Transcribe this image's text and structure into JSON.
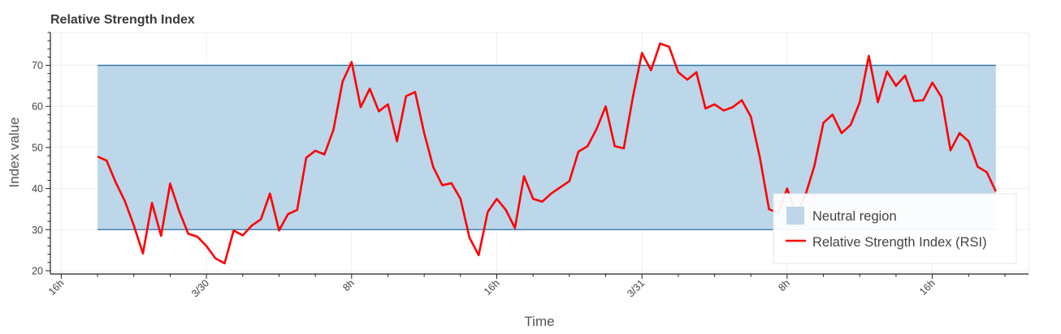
{
  "chart_data": {
    "type": "line",
    "title": "Relative Strength Index",
    "xlabel": "Time",
    "ylabel": "Index value",
    "x_unit": "hours",
    "x_ticks": [
      {
        "hour": 16,
        "label": "16h"
      },
      {
        "hour": 24,
        "label": "3/30"
      },
      {
        "hour": 32,
        "label": "8h"
      },
      {
        "hour": 40,
        "label": "16h"
      },
      {
        "hour": 48,
        "label": "3/31"
      },
      {
        "hour": 56,
        "label": "8h"
      },
      {
        "hour": 64,
        "label": "16h"
      }
    ],
    "xlim": [
      15.4,
      69.3
    ],
    "ylim": [
      19.2,
      78
    ],
    "y_ticks": [
      20,
      30,
      40,
      50,
      60,
      70
    ],
    "grid": true,
    "legend_position": "bottom-right",
    "band": {
      "name": "Neutral region",
      "lower": 30,
      "upper": 70,
      "x_start": 18,
      "x_end": 67.5,
      "fill": "#bcd6ea",
      "edge": "#2c6fa3"
    },
    "series": [
      {
        "name": "Relative Strength Index (RSI)",
        "color": "#ff0000",
        "x_start": 18,
        "x_step": 0.5,
        "values": [
          47.8,
          46.8,
          41.5,
          37.0,
          31.0,
          24.2,
          36.5,
          28.5,
          41.2,
          34.5,
          29.0,
          28.3,
          26.0,
          23.0,
          21.8,
          29.8,
          28.6,
          31.0,
          32.5,
          38.8,
          29.8,
          33.8,
          34.8,
          47.5,
          49.2,
          48.3,
          54.3,
          66.0,
          70.8,
          59.8,
          64.3,
          58.8,
          60.5,
          51.5,
          62.5,
          63.5,
          53.5,
          45.2,
          40.8,
          41.3,
          37.5,
          28.0,
          23.8,
          34.3,
          37.5,
          34.8,
          30.4,
          43.0,
          37.5,
          36.8,
          38.8,
          40.3,
          41.8,
          49.0,
          50.3,
          54.5,
          60.0,
          50.3,
          49.8,
          62.3,
          73.0,
          68.8,
          75.3,
          74.5,
          68.3,
          66.5,
          68.3,
          59.5,
          60.5,
          59.0,
          59.8,
          61.5,
          57.5,
          47.5,
          35.0,
          34.0,
          40.0,
          33.5,
          38.3,
          45.5,
          56.0,
          58.0,
          53.5,
          55.5,
          61.0,
          72.3,
          61.0,
          68.5,
          65.0,
          67.5,
          61.3,
          61.5,
          65.8,
          62.3,
          49.3,
          53.5,
          51.5,
          45.3,
          44.0,
          39.3
        ]
      }
    ]
  }
}
